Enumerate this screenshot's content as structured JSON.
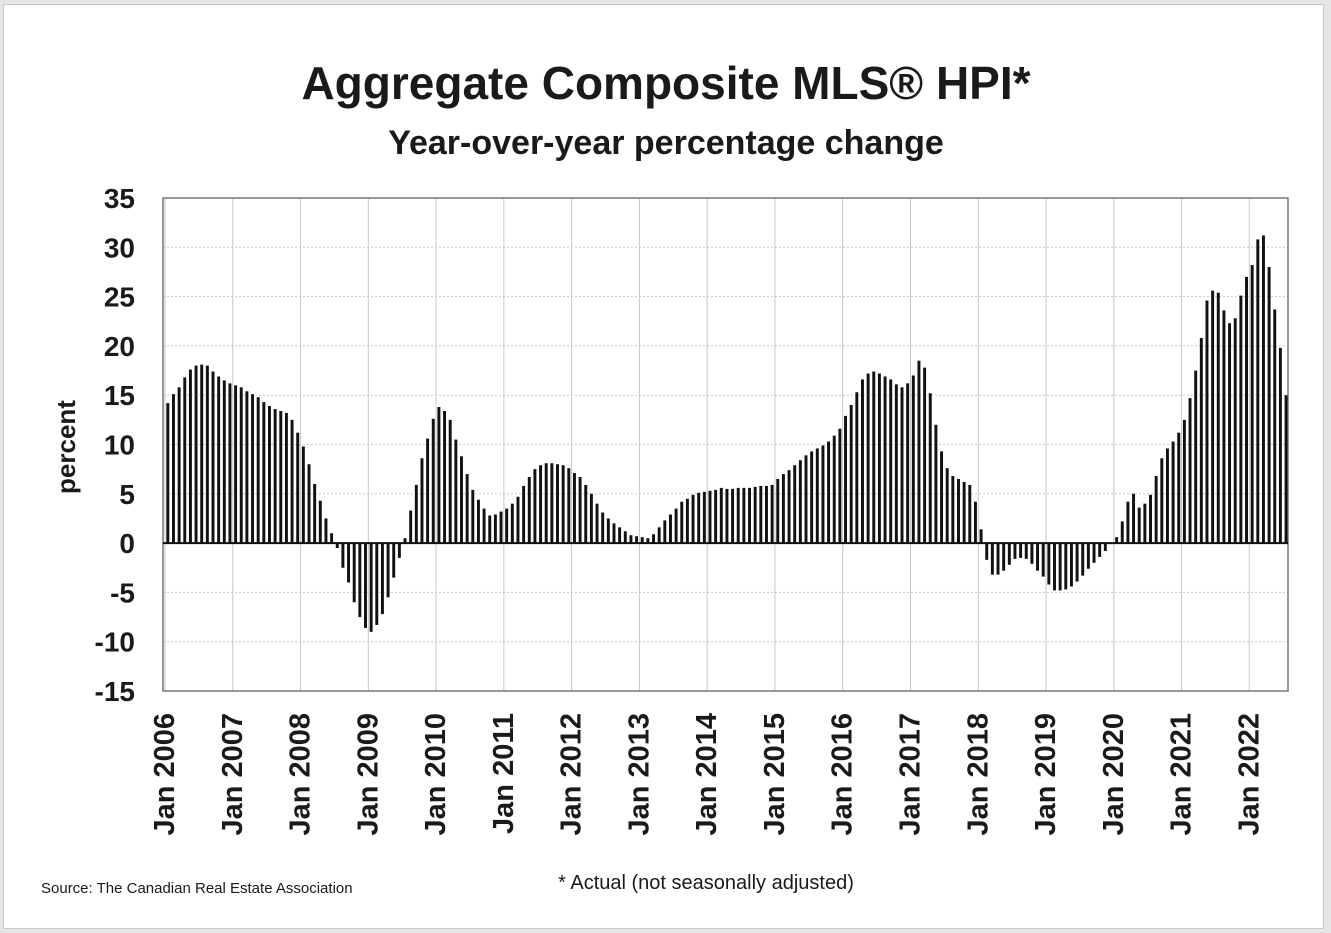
{
  "chart_data": {
    "type": "bar",
    "title": "Aggregate Composite MLS® HPI*",
    "subtitle": "Year-over-year percentage change",
    "ylabel": "percent",
    "xlabel": "",
    "ylim": [
      -15,
      35
    ],
    "yticks": [
      35,
      30,
      25,
      20,
      15,
      10,
      5,
      0,
      -5,
      -10,
      -15
    ],
    "xticks": [
      "Jan 2006",
      "Jan 2007",
      "Jan 2008",
      "Jan 2009",
      "Jan 2010",
      "Jan 2011",
      "Jan 2012",
      "Jan 2013",
      "Jan 2014",
      "Jan 2015",
      "Jan 2016",
      "Jan 2017",
      "Jan 2018",
      "Jan 2019",
      "Jan 2020",
      "Jan 2021",
      "Jan 2022"
    ],
    "grid": true,
    "start": "Jan 2006",
    "frequency": "monthly",
    "bar_color": "#111111",
    "values": [
      14.2,
      15.1,
      15.8,
      16.8,
      17.6,
      18.0,
      18.1,
      18.0,
      17.4,
      16.9,
      16.5,
      16.2,
      16.0,
      15.8,
      15.4,
      15.1,
      14.8,
      14.3,
      13.9,
      13.6,
      13.4,
      13.2,
      12.5,
      11.2,
      9.8,
      8.0,
      6.0,
      4.3,
      2.5,
      1.0,
      -0.5,
      -2.5,
      -4.0,
      -6.0,
      -7.5,
      -8.6,
      -9.0,
      -8.3,
      -7.2,
      -5.5,
      -3.5,
      -1.5,
      0.5,
      3.3,
      5.9,
      8.6,
      10.6,
      12.6,
      13.8,
      13.4,
      12.5,
      10.5,
      8.8,
      7.0,
      5.4,
      4.4,
      3.5,
      2.8,
      2.9,
      3.2,
      3.5,
      4.0,
      4.7,
      5.8,
      6.7,
      7.5,
      7.9,
      8.1,
      8.1,
      8.0,
      7.9,
      7.6,
      7.1,
      6.7,
      5.9,
      5.0,
      4.0,
      3.1,
      2.5,
      2.0,
      1.6,
      1.2,
      0.8,
      0.7,
      0.6,
      0.5,
      0.9,
      1.6,
      2.3,
      2.9,
      3.5,
      4.2,
      4.5,
      4.9,
      5.1,
      5.2,
      5.3,
      5.4,
      5.6,
      5.5,
      5.5,
      5.6,
      5.6,
      5.6,
      5.7,
      5.8,
      5.8,
      5.9,
      6.5,
      7.0,
      7.4,
      7.9,
      8.4,
      8.9,
      9.3,
      9.6,
      9.9,
      10.3,
      10.9,
      11.6,
      12.9,
      14.0,
      15.3,
      16.6,
      17.2,
      17.4,
      17.2,
      16.9,
      16.6,
      16.1,
      15.8,
      16.2,
      17.0,
      18.5,
      17.8,
      15.2,
      12.0,
      9.3,
      7.6,
      6.8,
      6.5,
      6.2,
      5.9,
      4.2,
      1.4,
      -1.7,
      -3.2,
      -3.2,
      -2.8,
      -2.2,
      -1.6,
      -1.5,
      -1.6,
      -2.1,
      -2.8,
      -3.4,
      -4.2,
      -4.8,
      -4.8,
      -4.7,
      -4.4,
      -3.9,
      -3.3,
      -2.6,
      -2.0,
      -1.4,
      -0.8,
      -0.1,
      0.6,
      2.2,
      4.2,
      5.0,
      3.6,
      4.0,
      4.9,
      6.8,
      8.6,
      9.6,
      10.3,
      11.2,
      12.5,
      14.7,
      17.5,
      20.8,
      24.6,
      25.6,
      25.4,
      23.6,
      22.3,
      22.8,
      25.1,
      27.0,
      28.2,
      30.8,
      31.2,
      28.0,
      23.7,
      19.8,
      15.0
    ]
  },
  "source_note": "Source: The Canadian Real Estate Association",
  "footnote": "* Actual (not seasonally adjusted)"
}
